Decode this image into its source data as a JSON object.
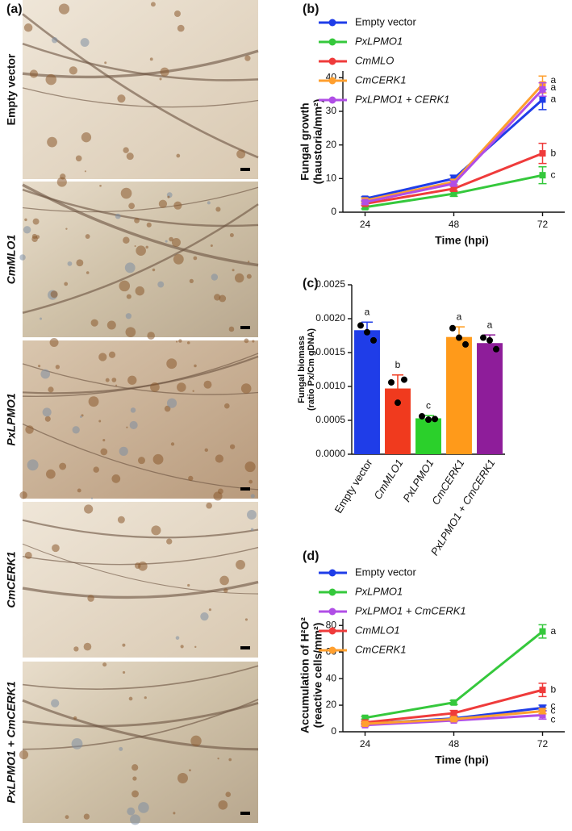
{
  "figure": {
    "panel_label": "(a)",
    "images": [
      {
        "label": "Empty vector",
        "italic": false
      },
      {
        "label": "CmMLO1",
        "italic": true
      },
      {
        "label": "PxLPMO1",
        "italic": true
      },
      {
        "label": "CmCERK1",
        "italic": true
      },
      {
        "label": "PxLPMO1 + CmCERK1",
        "italic": true
      }
    ]
  },
  "chart_data": [
    {
      "type": "line",
      "panel": "(b)",
      "xlabel": "Time (hpi)",
      "ylabel": [
        "Fungal growth",
        "(haustoria/mm²)"
      ],
      "x": [
        24,
        48,
        72
      ],
      "xlim": [
        18,
        78
      ],
      "xticks": [
        24,
        48,
        72
      ],
      "ylim": [
        0,
        42
      ],
      "yticks": [
        0,
        10,
        20,
        30,
        40
      ],
      "series": [
        {
          "name": "Empty vector",
          "color": "#1f3de8",
          "values": [
            4,
            10,
            33.5
          ],
          "errors": [
            0.6,
            1,
            3
          ],
          "letter": "a"
        },
        {
          "name": "PxLPMO1",
          "color": "#35c83c",
          "values": [
            1.5,
            5.5,
            11
          ],
          "errors": [
            0.5,
            0.8,
            2.5
          ],
          "letter": "c"
        },
        {
          "name": "CmMLO",
          "color": "#ef3b3b",
          "values": [
            2.5,
            7,
            17.5
          ],
          "errors": [
            0.5,
            0.8,
            3
          ],
          "letter": "b"
        },
        {
          "name": "CmCERK1",
          "color": "#ff9f2e",
          "values": [
            3.5,
            9,
            38
          ],
          "errors": [
            0.5,
            0.8,
            2.5
          ],
          "letter": "a"
        },
        {
          "name": "PxLPMO1 + CERK1",
          "color": "#b04ee6",
          "values": [
            3,
            8.5,
            36.5
          ],
          "errors": [
            0.5,
            0.8,
            2
          ],
          "letter": "a"
        }
      ]
    },
    {
      "type": "bar",
      "panel": "(c)",
      "ylabel": [
        "Fungal biomass",
        "(ratio Px/Cm gDNA)"
      ],
      "categories": [
        "Empty vector",
        "CmMLO1",
        "PxLPMO1",
        "CmCERK1",
        "PxLPMO1 + CmCERK1"
      ],
      "values": [
        0.00183,
        0.00097,
        0.00053,
        0.00173,
        0.00164
      ],
      "errors": [
        0.00012,
        0.0002,
        4e-05,
        0.00015,
        0.00012
      ],
      "points": [
        [
          0.0019,
          0.0018,
          0.00168
        ],
        [
          0.00106,
          0.00076,
          0.0011
        ],
        [
          0.00056,
          0.00051,
          0.00052
        ],
        [
          0.00186,
          0.00172,
          0.00162
        ],
        [
          0.00172,
          0.00168,
          0.00155
        ]
      ],
      "colors": [
        "#1f3de8",
        "#f03a1e",
        "#2bd02b",
        "#ff9a1a",
        "#8e1d9a"
      ],
      "letters": [
        "a",
        "b",
        "c",
        "a",
        "a"
      ],
      "ylim": [
        0,
        0.0025
      ],
      "yticks": [
        {
          "value": 0,
          "label": "0.0000"
        },
        {
          "value": 0.0005,
          "label": "0.0005"
        },
        {
          "value": 0.001,
          "label": "0.0010"
        },
        {
          "value": 0.0015,
          "label": "0.0015"
        },
        {
          "value": 0.002,
          "label": "0.0020"
        },
        {
          "value": 0.0025,
          "label": "0.0025"
        }
      ]
    },
    {
      "type": "line",
      "panel": "(d)",
      "xlabel": "Time (hpi)",
      "ylabel": [
        "Accumulation of H²O²",
        "(reactive cells/mm²)"
      ],
      "x": [
        24,
        48,
        72
      ],
      "xlim": [
        18,
        78
      ],
      "xticks": [
        24,
        48,
        72
      ],
      "ylim": [
        0,
        85
      ],
      "yticks": [
        0,
        20,
        40,
        60,
        80
      ],
      "series": [
        {
          "name": "Empty vector",
          "color": "#1f3de8",
          "values": [
            6,
            10,
            18
          ],
          "errors": [
            1,
            1.5,
            2
          ],
          "letter": "c"
        },
        {
          "name": "PxLPMO1",
          "color": "#35c83c",
          "values": [
            10.5,
            22,
            75.5
          ],
          "errors": [
            1,
            1.5,
            5
          ],
          "letter": "a"
        },
        {
          "name": "PxLPMO1 + CmCERK1",
          "color": "#b04ee6",
          "values": [
            5,
            8.5,
            12.5
          ],
          "errors": [
            1,
            1,
            3
          ],
          "letter": "c"
        },
        {
          "name": "CmMLO1",
          "color": "#ef3b3b",
          "values": [
            7,
            14,
            31.5
          ],
          "errors": [
            1,
            2,
            5
          ],
          "letter": "b"
        },
        {
          "name": "CmCERK1",
          "color": "#ff9f2e",
          "values": [
            6,
            9.5,
            15.5
          ],
          "errors": [
            1,
            1,
            2
          ],
          "letter": "c"
        }
      ]
    }
  ]
}
